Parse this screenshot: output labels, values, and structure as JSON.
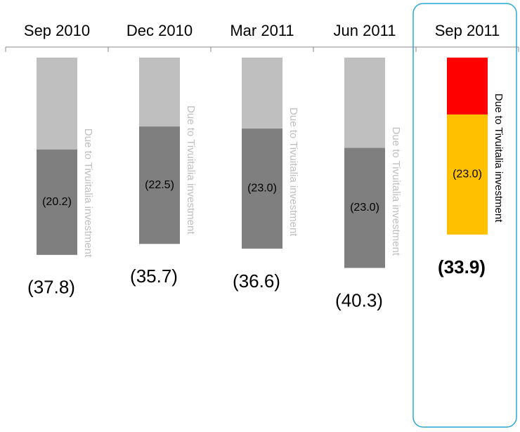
{
  "chart_data": {
    "type": "bar",
    "stacked": true,
    "categories": [
      "Sep 2010",
      "Dec 2010",
      "Mar  2011",
      "Jun 2011",
      "Sep 2011"
    ],
    "series": [
      {
        "colors": [
          "#bfbfbf",
          "#bfbfbf",
          "#bfbfbf",
          "#bfbfbf",
          "#ff0000"
        ],
        "values": [
          -17.6,
          -13.2,
          -13.6,
          -17.3,
          -10.9
        ]
      },
      {
        "name": "Due to Tivuitalia investment",
        "colors": [
          "#7f7f7f",
          "#7f7f7f",
          "#7f7f7f",
          "#7f7f7f",
          "#ffc000"
        ],
        "annotation_colors": [
          "#bfbfbf",
          "#bfbfbf",
          "#bfbfbf",
          "#bfbfbf",
          "#000000"
        ],
        "values": [
          -20.2,
          -22.5,
          -23.0,
          -23.0,
          -23.0
        ],
        "value_labels": [
          "(20.2)",
          "(22.5)",
          "(23.0)",
          "(23.0)",
          "(23.0)"
        ]
      }
    ],
    "totals": {
      "values": [
        -37.8,
        -35.7,
        -36.6,
        -40.3,
        -33.9
      ],
      "value_labels": [
        "(37.8)",
        "(35.7)",
        "(36.6)",
        "(40.3)",
        "(33.9)"
      ]
    },
    "ylim": [
      -50,
      0
    ]
  }
}
